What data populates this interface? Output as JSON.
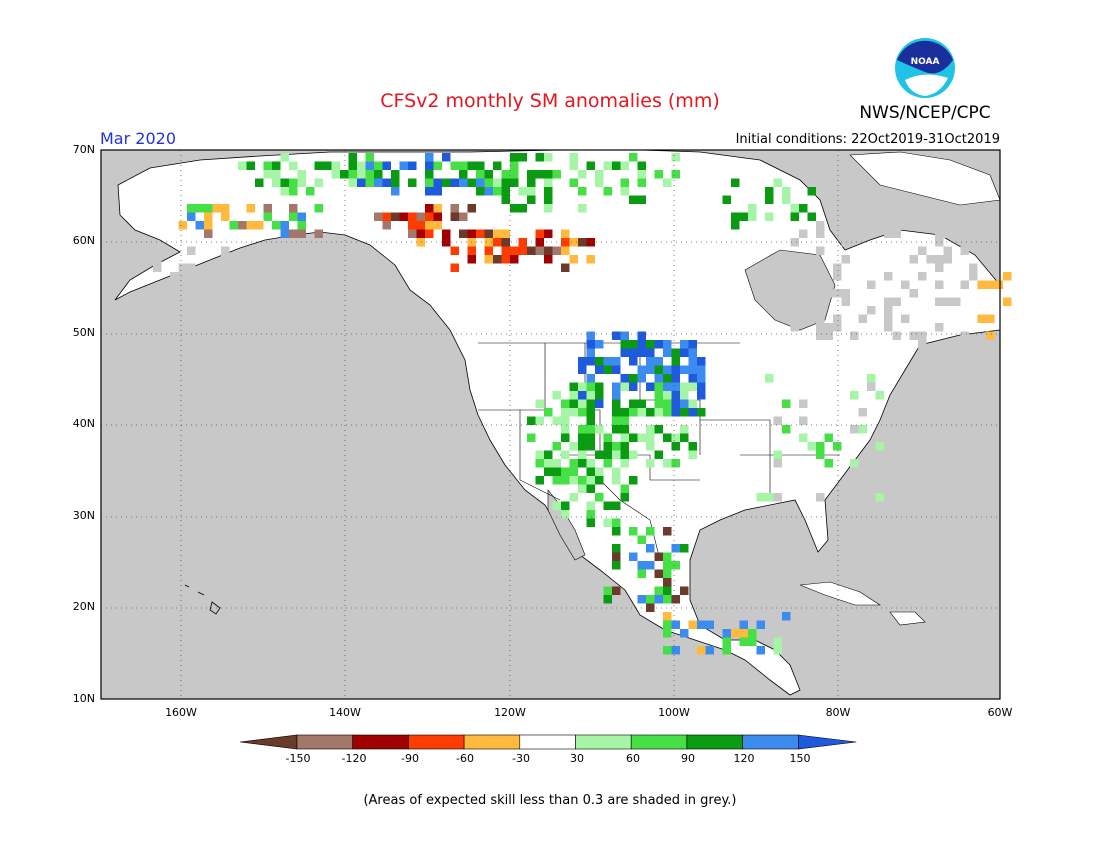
{
  "header": {
    "title": "CFSv2 monthly SM anomalies (mm)",
    "month": "Mar 2020",
    "initial_conditions": "Initial conditions: 22Oct2019-31Oct2019",
    "agency": "NWS/NCEP/CPC",
    "logo_text": "NOAA"
  },
  "map": {
    "lat_labels": [
      "70N",
      "60N",
      "50N",
      "40N",
      "30N",
      "20N",
      "10N"
    ],
    "lon_labels": [
      "160W",
      "140W",
      "120W",
      "100W",
      "80W",
      "60W"
    ],
    "colors": {
      "ocean_grey": "#c8c8c8",
      "land_white": "#ffffff"
    }
  },
  "colorbar": {
    "tick_labels": [
      "-150",
      "-120",
      "-90",
      "-60",
      "-30",
      "30",
      "60",
      "90",
      "120",
      "150"
    ],
    "colors": [
      "#6b3a2a",
      "#a3776a",
      "#a00000",
      "#ff3c00",
      "#ffb93c",
      "#ffffff",
      "#a6f5a6",
      "#46e046",
      "#0a9b12",
      "#3c8cf0",
      "#1e5adc"
    ]
  },
  "footnote": "(Areas of expected skill less than 0.3 are shaded in grey.)"
}
